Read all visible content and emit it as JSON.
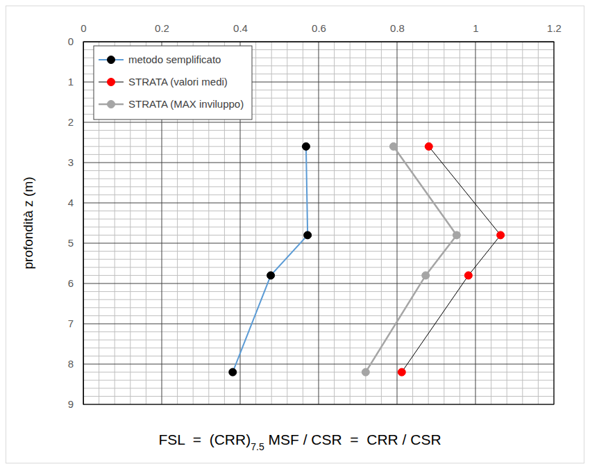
{
  "chart_data": {
    "type": "line",
    "xlabel": [
      "FSL  =  (CRR)",
      "7.5",
      " MSF / CSR  =  CRR / CSR"
    ],
    "ylabel": "profondità  z (m)",
    "xlim": [
      0,
      1.2
    ],
    "xticks": [
      0,
      0.2,
      0.4,
      0.6,
      0.8,
      1,
      1.2
    ],
    "ylim": [
      9,
      0
    ],
    "yticks": [
      0,
      1,
      2,
      3,
      4,
      5,
      6,
      7,
      8,
      9
    ],
    "grid": true,
    "legend": "top-left",
    "series": [
      {
        "name": "metodo semplificato",
        "color": "#000000",
        "marker": "circle",
        "x": [
          0.568,
          0.572,
          0.478,
          0.381
        ],
        "values": [
          2.6,
          4.8,
          5.8,
          8.2
        ]
      },
      {
        "name": "STRATA (valori medi)",
        "color": "#ff0000",
        "marker": "circle",
        "x": [
          0.881,
          1.064,
          0.982,
          0.812
        ],
        "values": [
          2.6,
          4.8,
          5.8,
          8.2
        ]
      },
      {
        "name": "STRATA (MAX inviluppo)",
        "color": "#a5a5a5",
        "marker": "circle",
        "x": [
          0.791,
          0.952,
          0.873,
          0.72
        ],
        "values": [
          2.6,
          4.8,
          5.8,
          8.2
        ]
      }
    ]
  }
}
